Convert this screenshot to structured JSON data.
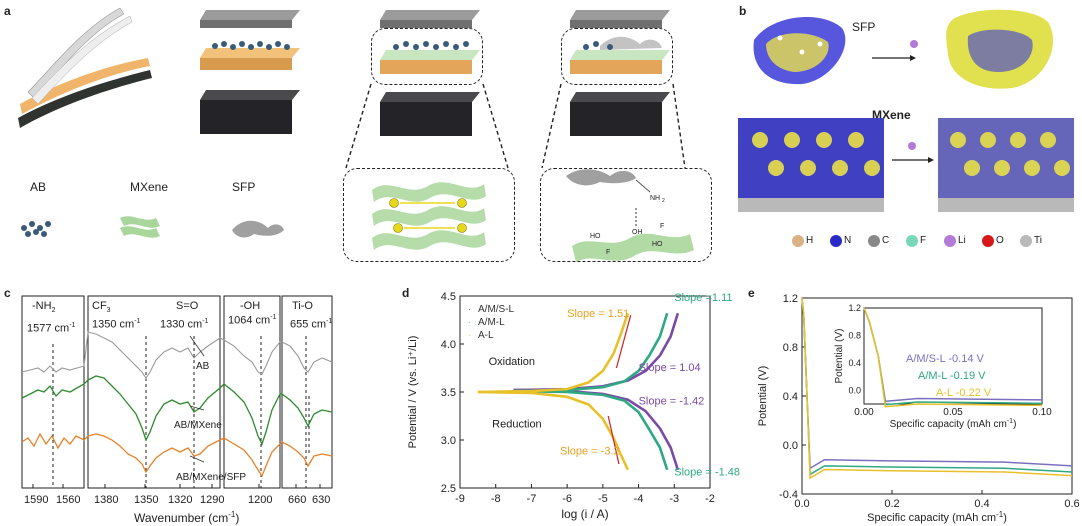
{
  "panels": {
    "a": {
      "label": "a",
      "components": [
        "AB",
        "MXene",
        "SFP"
      ]
    },
    "b": {
      "label": "b",
      "molecule_label": "SFP",
      "slab_label": "MXene",
      "atom_legend": [
        {
          "symbol": "H",
          "color": "#d8b184"
        },
        {
          "symbol": "N",
          "color": "#2a2ac8"
        },
        {
          "symbol": "C",
          "color": "#888888"
        },
        {
          "symbol": "F",
          "color": "#79d6b8"
        },
        {
          "symbol": "Li",
          "color": "#b47ad8"
        },
        {
          "symbol": "O",
          "color": "#d81818"
        },
        {
          "symbol": "Ti",
          "color": "#b9b9b9"
        }
      ]
    },
    "c": {
      "label": "c",
      "peaks": [
        {
          "group": "-NH",
          "sub": "2",
          "wn": "1577 cm",
          "sup": "-1"
        },
        {
          "group": "CF",
          "sub": "3",
          "wn": "1350 cm",
          "sup": "-1"
        },
        {
          "group": "S=O",
          "sub": "",
          "wn": "1330 cm",
          "sup": "-1"
        },
        {
          "group": "-OH",
          "sub": "",
          "wn": "1064 cm",
          "sup": "-1"
        },
        {
          "group": "Ti-O",
          "sub": "",
          "wn": "655 cm",
          "sup": "-1"
        }
      ],
      "spectra": [
        "AB",
        "AB/MXene",
        "AB/MXene/SFP"
      ],
      "xlabel": "Wavenumber (cm",
      "xlabel_sup": "-1",
      "xlabel_end": ")",
      "ticks": {
        "p1": [
          "1590",
          "1560"
        ],
        "p2": [
          "1380",
          "1350",
          "1320",
          "1290"
        ],
        "p3": [
          "1200"
        ],
        "p4": [
          "660",
          "630"
        ]
      }
    },
    "d": {
      "label": "d",
      "chart_data": {
        "type": "line",
        "xlabel": "log (i / A)",
        "ylabel": "Potential / V (vs. Li⁺/Li)",
        "xlim": [
          -9,
          -2
        ],
        "ylim": [
          2.5,
          4.5
        ],
        "xticks": [
          -9,
          -8,
          -7,
          -6,
          -5,
          -4,
          -3,
          -2
        ],
        "yticks": [
          2.5,
          3.0,
          3.5,
          4.0,
          4.5
        ],
        "ytick_labels": [
          "2.5",
          "3.0",
          "3.5",
          "4.0",
          "4.5"
        ],
        "series": [
          {
            "name": "A/M/S-L",
            "color": "#7b4aa6",
            "x": [
              -7.5,
              -6.0,
              -5.0,
              -4.3,
              -3.8,
              -3.4,
              -3.1,
              -2.9
            ],
            "y_ox": [
              3.52,
              3.53,
              3.56,
              3.62,
              3.72,
              3.88,
              4.08,
              4.32
            ],
            "y_red": [
              3.52,
              3.51,
              3.48,
              3.42,
              3.3,
              3.12,
              2.92,
              2.69
            ]
          },
          {
            "name": "A/M-L",
            "color": "#2fa884",
            "x": [
              -7.5,
              -6.0,
              -5.0,
              -4.4,
              -4.0,
              -3.7,
              -3.4,
              -3.2
            ],
            "y_ox": [
              3.51,
              3.52,
              3.55,
              3.61,
              3.72,
              3.88,
              4.08,
              4.32
            ],
            "y_red": [
              3.51,
              3.5,
              3.47,
              3.41,
              3.29,
              3.11,
              2.92,
              2.69
            ]
          },
          {
            "name": "A-L",
            "color": "#e8c02a",
            "x": [
              -8.5,
              -7.0,
              -6.0,
              -5.4,
              -5.0,
              -4.7,
              -4.5,
              -4.3
            ],
            "y_ox": [
              3.5,
              3.51,
              3.53,
              3.6,
              3.72,
              3.9,
              4.1,
              4.32
            ],
            "y_red": [
              3.5,
              3.49,
              3.45,
              3.37,
              3.22,
              3.02,
              2.85,
              2.69
            ]
          }
        ],
        "annotations": [
          {
            "text": "Slope =1.11",
            "color": "#2fa884"
          },
          {
            "text": "Slope = 1.51",
            "color": "#e8a020"
          },
          {
            "text": "Slope = 1.04",
            "color": "#7b4aa6"
          },
          {
            "text": "Slope = -1.42",
            "color": "#7b4aa6"
          },
          {
            "text": "Slope = -3.2",
            "color": "#e8a020"
          },
          {
            "text": "Slope = -1.48",
            "color": "#2fa884"
          },
          {
            "text": "Oxidation",
            "color": "#222222"
          },
          {
            "text": "Reduction",
            "color": "#222222"
          }
        ]
      }
    },
    "e": {
      "label": "e",
      "chart_data": {
        "type": "line",
        "xlabel": "Specific capacity (mAh cm",
        "xlabel_sup": "-1",
        "xlabel_end": ")",
        "ylabel": "Potential (V)",
        "xlim": [
          0.0,
          0.6
        ],
        "ylim": [
          -0.4,
          1.2
        ],
        "xticks": [
          "0.0",
          "0.2",
          "0.4",
          "0.6"
        ],
        "yticks": [
          "-0.4",
          "0.0",
          "0.4",
          "0.8",
          "1.2"
        ],
        "series": [
          {
            "name": "A/M/S-L",
            "color": "#7b6fc0",
            "plateau": -0.14
          },
          {
            "name": "A/M-L",
            "color": "#2fa884",
            "plateau": -0.19
          },
          {
            "name": "A-L",
            "color": "#e8c02a",
            "plateau": -0.22
          }
        ],
        "inset": {
          "xlabel": "Specific capacity (mAh cm",
          "xlabel_sup": "-1",
          "xlabel_end": ")",
          "ylabel": "Potential (V)",
          "xticks": [
            "0.00",
            "0.05",
            "0.10"
          ],
          "yticks": [
            "0.0",
            "0.4",
            "0.8",
            "1.2"
          ],
          "labels": [
            {
              "text": "A/M/S-L -0.14 V",
              "color": "#7b6fc0"
            },
            {
              "text": "A/M-L -0.19 V",
              "color": "#2fa884"
            },
            {
              "text": "A-L -0.22 V",
              "color": "#e8c02a"
            }
          ]
        }
      }
    }
  }
}
